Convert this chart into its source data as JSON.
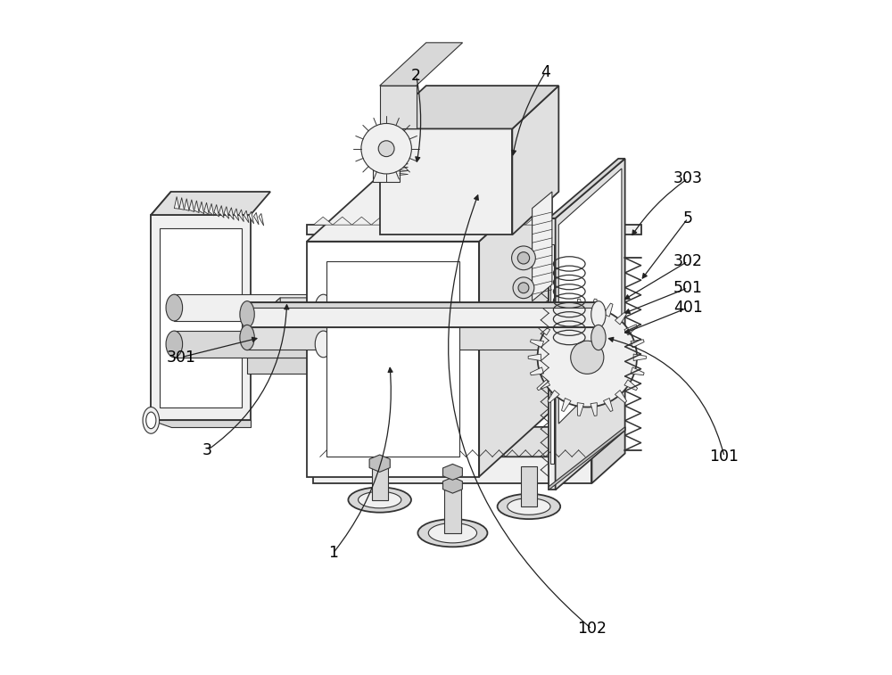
{
  "background_color": "#ffffff",
  "line_color": "#333333",
  "line_color_dark": "#111111",
  "lw_main": 1.3,
  "lw_thin": 0.8,
  "lw_thick": 1.8,
  "figsize": [
    10.0,
    7.57
  ],
  "dpi": 100,
  "annotations": {
    "1": {
      "lpos": [
        0.33,
        0.175
      ],
      "tpos": [
        0.415,
        0.46
      ]
    },
    "2": {
      "lpos": [
        0.455,
        0.895
      ],
      "tpos": [
        0.455,
        0.76
      ]
    },
    "3": {
      "lpos": [
        0.14,
        0.33
      ],
      "tpos": [
        0.26,
        0.555
      ]
    },
    "4": {
      "lpos": [
        0.65,
        0.9
      ],
      "tpos": [
        0.6,
        0.77
      ]
    },
    "5": {
      "lpos": [
        0.865,
        0.68
      ],
      "tpos": [
        0.793,
        0.585
      ]
    },
    "101": {
      "lpos": [
        0.92,
        0.32
      ],
      "tpos": [
        0.74,
        0.5
      ]
    },
    "102": {
      "lpos": [
        0.72,
        0.06
      ],
      "tpos": [
        0.55,
        0.72
      ]
    },
    "301": {
      "lpos": [
        0.1,
        0.47
      ],
      "tpos": [
        0.22,
        0.5
      ]
    },
    "302": {
      "lpos": [
        0.865,
        0.615
      ],
      "tpos": [
        0.765,
        0.555
      ]
    },
    "303": {
      "lpos": [
        0.865,
        0.74
      ],
      "tpos": [
        0.778,
        0.65
      ]
    },
    "401": {
      "lpos": [
        0.865,
        0.545
      ],
      "tpos": [
        0.765,
        0.505
      ]
    },
    "501": {
      "lpos": [
        0.865,
        0.575
      ],
      "tpos": [
        0.765,
        0.535
      ]
    }
  }
}
